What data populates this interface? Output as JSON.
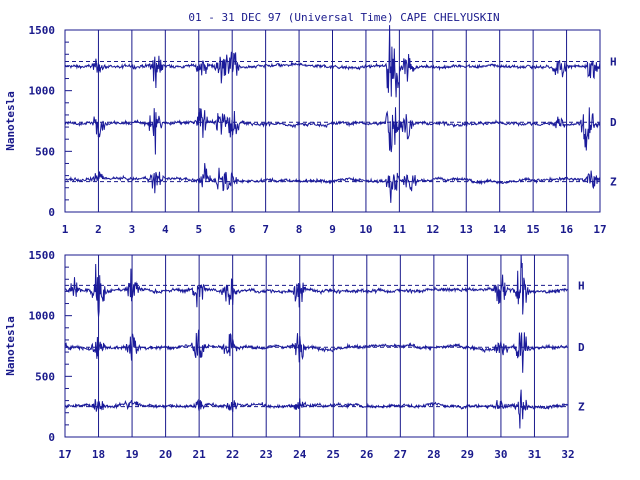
{
  "chart_data": {
    "type": "line",
    "title": "01 - 31 DEC 97 (Universal Time) CAPE CHELYUSKIN",
    "ylabel": "Nanotesla",
    "xlabel": "",
    "grid": "vertical lines at each day",
    "colors": {
      "trace": "#1a1a9a",
      "frame": "#1a1a8c",
      "baseline": "#1a1a8c"
    },
    "panels": [
      {
        "xlim": [
          1,
          17
        ],
        "ylim": [
          0,
          1500
        ],
        "x_tick_labels": [
          "1",
          "2",
          "3",
          "4",
          "5",
          "6",
          "7",
          "8",
          "9",
          "10",
          "11",
          "12",
          "13",
          "14",
          "15",
          "16",
          "17"
        ],
        "y_tick_labels": [
          "0",
          "500",
          "1000",
          "1500"
        ],
        "series": [
          {
            "name": "H",
            "baseline": 1240,
            "level": 1200,
            "disturbances": [
              [
                2.0,
                110
              ],
              [
                3.7,
                300
              ],
              [
                5.1,
                180
              ],
              [
                5.7,
                300
              ],
              [
                6.0,
                250
              ],
              [
                10.8,
                800
              ],
              [
                11.2,
                250
              ],
              [
                15.8,
                200
              ],
              [
                16.8,
                250
              ]
            ]
          },
          {
            "name": "D",
            "baseline": 740,
            "level": 730,
            "disturbances": [
              [
                2.0,
                200
              ],
              [
                3.7,
                300
              ],
              [
                5.1,
                200
              ],
              [
                5.7,
                300
              ],
              [
                6.0,
                320
              ],
              [
                10.8,
                600
              ],
              [
                11.2,
                250
              ],
              [
                15.8,
                100
              ],
              [
                16.6,
                400
              ]
            ]
          },
          {
            "name": "Z",
            "baseline": 250,
            "level": 265,
            "disturbances": [
              [
                2.0,
                100
              ],
              [
                3.7,
                200
              ],
              [
                5.2,
                180
              ],
              [
                5.7,
                220
              ],
              [
                6.0,
                150
              ],
              [
                10.8,
                300
              ],
              [
                11.3,
                200
              ],
              [
                16.8,
                200
              ]
            ]
          }
        ]
      },
      {
        "xlim": [
          17,
          32
        ],
        "ylim": [
          0,
          1500
        ],
        "x_tick_labels": [
          "17",
          "18",
          "19",
          "20",
          "21",
          "22",
          "23",
          "24",
          "25",
          "26",
          "27",
          "28",
          "29",
          "30",
          "31",
          "32"
        ],
        "y_tick_labels": [
          "0",
          "500",
          "1000",
          "1500"
        ],
        "series": [
          {
            "name": "H",
            "baseline": 1250,
            "level": 1210,
            "disturbances": [
              [
                17.3,
                150
              ],
              [
                18.0,
                400
              ],
              [
                19.0,
                250
              ],
              [
                21.0,
                300
              ],
              [
                21.9,
                300
              ],
              [
                24.0,
                250
              ],
              [
                30.0,
                250
              ],
              [
                30.6,
                500
              ]
            ]
          },
          {
            "name": "D",
            "baseline": 740,
            "level": 740,
            "disturbances": [
              [
                17.0,
                150
              ],
              [
                18.0,
                300
              ],
              [
                19.0,
                250
              ],
              [
                21.0,
                250
              ],
              [
                21.9,
                250
              ],
              [
                24.0,
                200
              ],
              [
                30.0,
                200
              ],
              [
                30.6,
                350
              ]
            ]
          },
          {
            "name": "Z",
            "baseline": 250,
            "level": 260,
            "disturbances": [
              [
                18.0,
                150
              ],
              [
                19.0,
                100
              ],
              [
                21.0,
                100
              ],
              [
                22.0,
                120
              ],
              [
                24.0,
                80
              ],
              [
                30.0,
                100
              ],
              [
                30.6,
                250
              ]
            ]
          }
        ]
      }
    ]
  }
}
